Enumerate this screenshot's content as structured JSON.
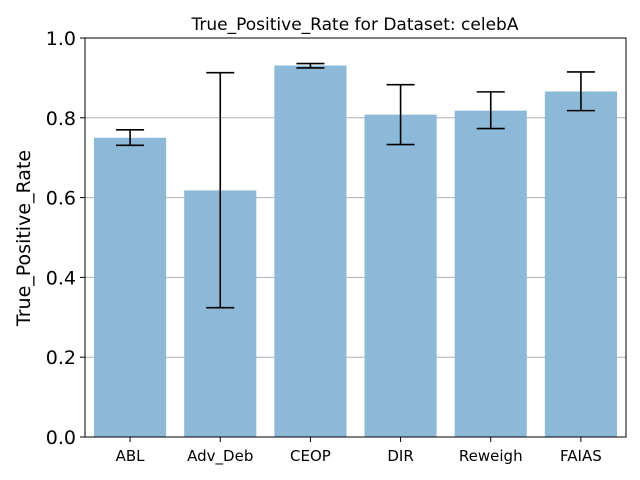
{
  "chart_data": {
    "type": "bar",
    "title": "True_Positive_Rate for Dataset: celebA",
    "xlabel": "",
    "ylabel": "True_Positive_Rate",
    "categories": [
      "ABL",
      "Adv_Deb",
      "CEOP",
      "DIR",
      "Reweigh",
      "FAIAS"
    ],
    "values": [
      0.75,
      0.618,
      0.931,
      0.808,
      0.818,
      0.866
    ],
    "error_low": [
      0.731,
      0.324,
      0.925,
      0.733,
      0.773,
      0.818
    ],
    "error_high": [
      0.77,
      0.913,
      0.936,
      0.883,
      0.865,
      0.915
    ],
    "ylim": [
      0,
      1.0
    ],
    "yticks": [
      "0.0",
      "0.2",
      "0.4",
      "0.6",
      "0.8",
      "1.0"
    ],
    "grid": "horizontal",
    "bar_color": "#8db9d9",
    "error_color": "#000000",
    "grid_color": "#b0b0b0"
  }
}
